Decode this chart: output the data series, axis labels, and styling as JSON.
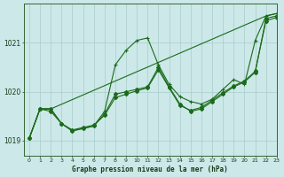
{
  "title": "Graphe pression niveau de la mer (hPa)",
  "bg_color": "#cce8e8",
  "grid_color": "#aacccc",
  "line_color": "#1a6b1a",
  "xlim": [
    -0.5,
    23
  ],
  "ylim": [
    1018.7,
    1021.8
  ],
  "yticks": [
    1019,
    1020,
    1021
  ],
  "xtick_labels": [
    "0",
    "1",
    "2",
    "3",
    "4",
    "5",
    "6",
    "7",
    "8",
    "9",
    "10",
    "11",
    "12",
    "13",
    "14",
    "15",
    "16",
    "17",
    "18",
    "19",
    "20",
    "21",
    "22",
    "23"
  ],
  "series_A_x": [
    0,
    1,
    2,
    3,
    4,
    5,
    6,
    7,
    8,
    9,
    10,
    11,
    12,
    13,
    14,
    15,
    16,
    17,
    18,
    19,
    20,
    21,
    22,
    23
  ],
  "series_A_y": [
    1019.05,
    1019.65,
    1019.65,
    1019.35,
    1019.2,
    1019.25,
    1019.3,
    1019.6,
    1020.55,
    1020.85,
    1021.05,
    1021.1,
    1020.55,
    1020.15,
    1019.9,
    1019.8,
    1019.75,
    1019.85,
    1020.05,
    1020.25,
    1020.15,
    1021.05,
    1021.55,
    1021.6
  ],
  "series_B_x": [
    0,
    1,
    2,
    22,
    23
  ],
  "series_B_y": [
    1019.05,
    1019.65,
    1019.65,
    1021.55,
    1021.6
  ],
  "series_C_x": [
    0,
    1,
    2,
    3,
    4,
    5,
    6,
    7,
    8,
    9,
    10,
    11,
    12,
    13,
    14,
    15,
    16,
    17,
    18,
    19,
    20,
    21,
    22,
    23
  ],
  "series_C_y": [
    1019.05,
    1019.65,
    1019.65,
    1019.35,
    1019.2,
    1019.25,
    1019.3,
    1019.55,
    1019.95,
    1020.0,
    1020.05,
    1020.1,
    1020.5,
    1020.1,
    1019.75,
    1019.6,
    1019.65,
    1019.8,
    1019.95,
    1020.1,
    1020.2,
    1020.4,
    1021.5,
    1021.55
  ],
  "series_D_x": [
    0,
    1,
    2,
    3,
    4,
    5,
    6,
    7,
    8,
    9,
    10,
    11,
    12,
    13,
    14,
    15,
    16,
    17,
    18,
    19,
    20,
    21,
    22,
    23
  ],
  "series_D_y": [
    1019.05,
    1019.65,
    1019.6,
    1019.35,
    1019.22,
    1019.27,
    1019.32,
    1019.52,
    1019.88,
    1019.95,
    1020.02,
    1020.08,
    1020.45,
    1020.08,
    1019.72,
    1019.62,
    1019.68,
    1019.83,
    1019.98,
    1020.12,
    1020.22,
    1020.42,
    1021.45,
    1021.52
  ]
}
